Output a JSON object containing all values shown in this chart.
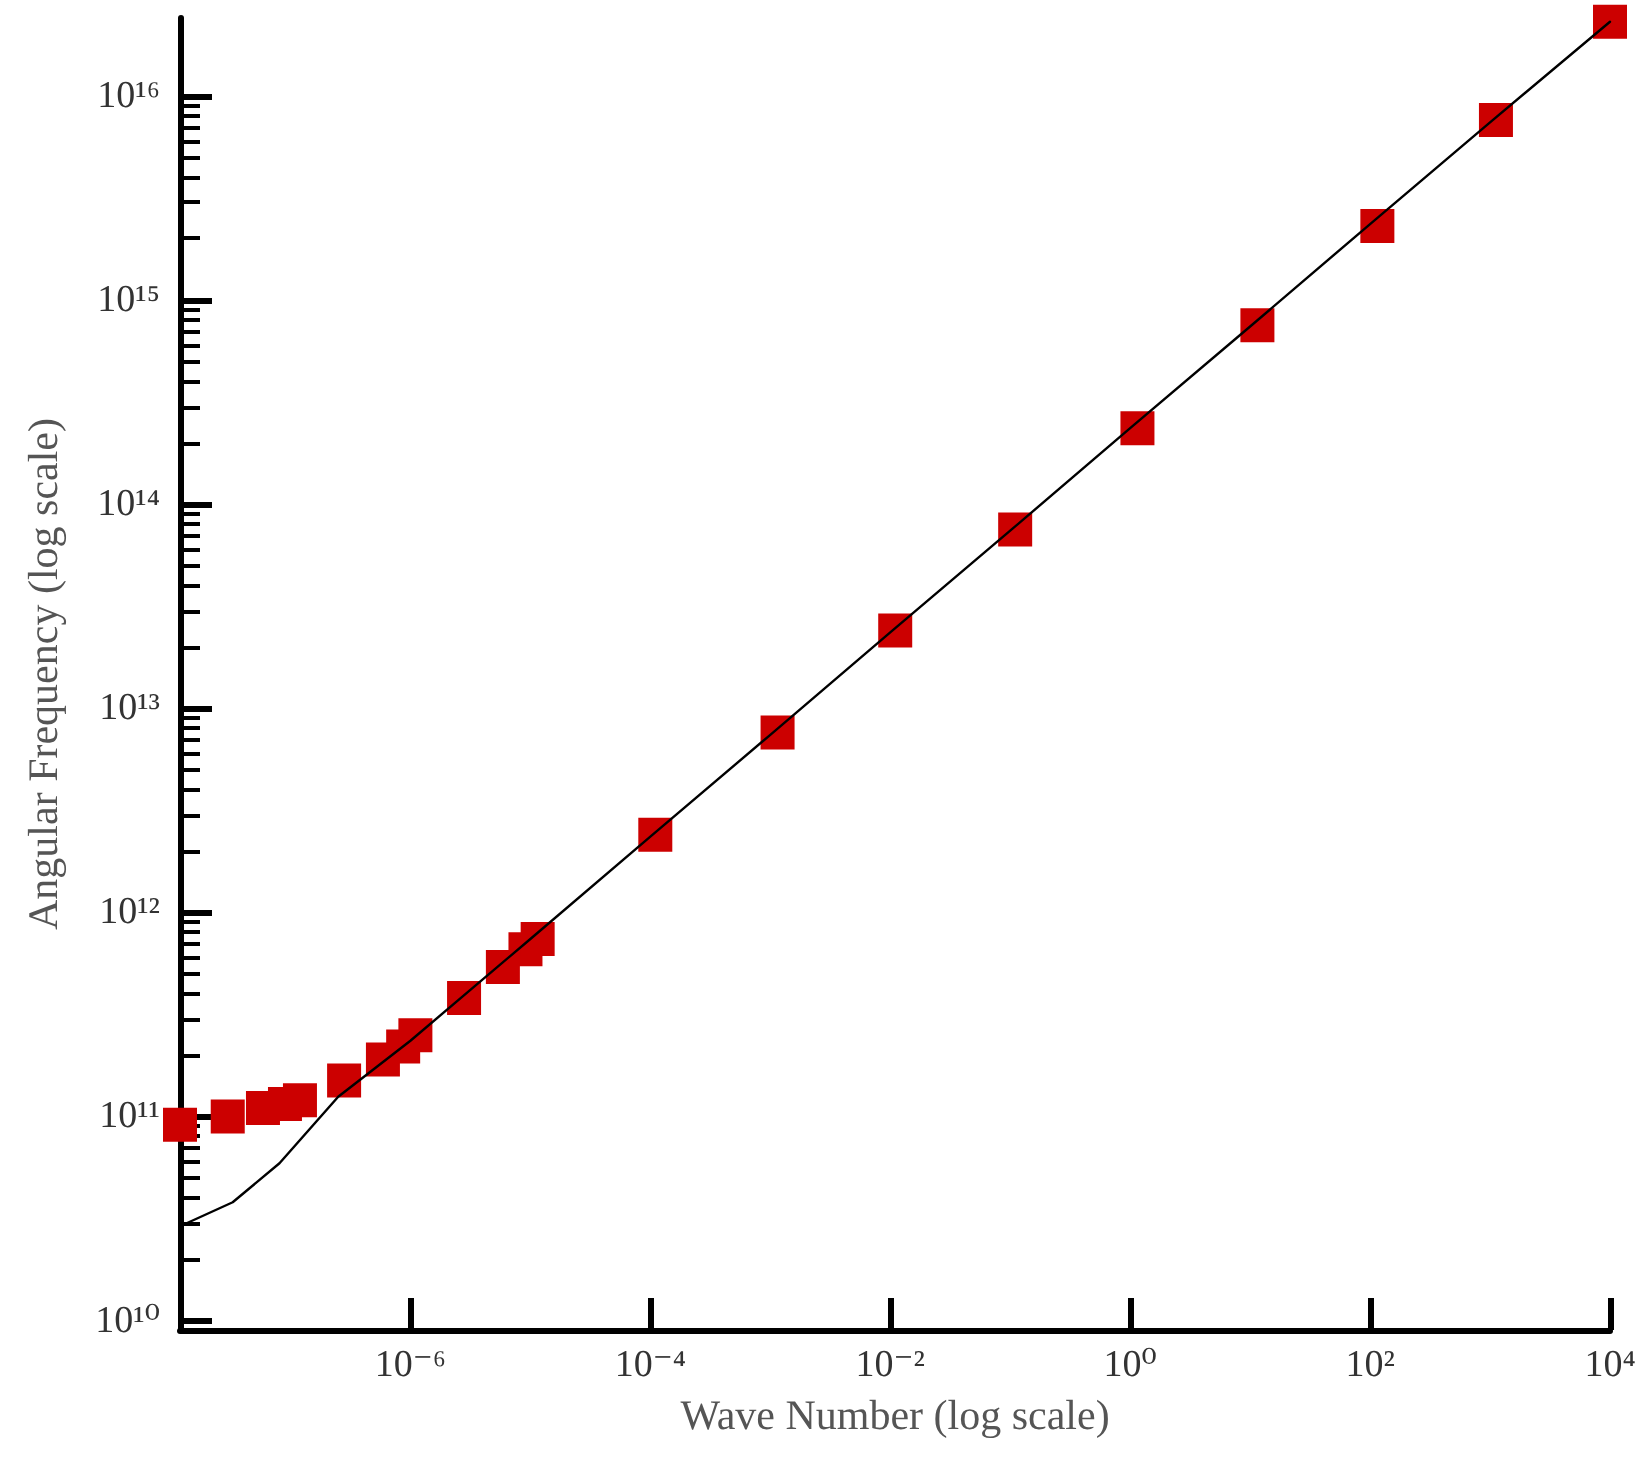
{
  "chart_data": {
    "type": "scatter",
    "xlabel": "Wave Number (log scale)",
    "ylabel": "Angular Frequency (log scale)",
    "log": "xy",
    "grid": false,
    "xlim": [
      1.2e-08,
      10000
    ],
    "ylim": [
      9000000000.0,
      2.4e+16
    ],
    "xticks": [
      {
        "value": 1e-06,
        "label": "10⁻⁶"
      },
      {
        "value": 0.0001,
        "label": "10⁻⁴"
      },
      {
        "value": 0.01,
        "label": "10⁻²"
      },
      {
        "value": 1,
        "label": "10⁰"
      },
      {
        "value": 100,
        "label": "10²"
      },
      {
        "value": 10000,
        "label": "10⁴"
      }
    ],
    "yticks": [
      {
        "value": 10000000000.0,
        "label": "10¹⁰"
      },
      {
        "value": 100000000000.0,
        "label": "10¹¹"
      },
      {
        "value": 1000000000000.0,
        "label": "10¹²"
      },
      {
        "value": 10000000000000.0,
        "label": "10¹³"
      },
      {
        "value": 100000000000000.0,
        "label": "10¹⁴"
      },
      {
        "value": 1000000000000000.0,
        "label": "10¹⁵"
      },
      {
        "value": 1e+16,
        "label": "10¹⁶"
      },
      {
        "value": 20000000000.0,
        "label": null
      },
      {
        "value": 30000000000.0,
        "label": null
      },
      {
        "value": 40000000000.0,
        "label": null
      },
      {
        "value": 50000000000.0,
        "label": null
      },
      {
        "value": 60000000000.0,
        "label": null
      },
      {
        "value": 70000000000.0,
        "label": null
      },
      {
        "value": 80000000000.0,
        "label": null
      },
      {
        "value": 90000000000.0,
        "label": null
      },
      {
        "value": 200000000000.0,
        "label": null
      },
      {
        "value": 300000000000.0,
        "label": null
      },
      {
        "value": 400000000000.0,
        "label": null
      },
      {
        "value": 500000000000.0,
        "label": null
      },
      {
        "value": 600000000000.0,
        "label": null
      },
      {
        "value": 700000000000.0,
        "label": null
      },
      {
        "value": 800000000000.0,
        "label": null
      },
      {
        "value": 900000000000.0,
        "label": null
      },
      {
        "value": 2000000000000.0,
        "label": null
      },
      {
        "value": 3000000000000.0,
        "label": null
      },
      {
        "value": 4000000000000.0,
        "label": null
      },
      {
        "value": 5000000000000.0,
        "label": null
      },
      {
        "value": 6000000000000.0,
        "label": null
      },
      {
        "value": 7000000000000.0,
        "label": null
      },
      {
        "value": 8000000000000.0,
        "label": null
      },
      {
        "value": 9000000000000.0,
        "label": null
      },
      {
        "value": 20000000000000.0,
        "label": null
      },
      {
        "value": 30000000000000.0,
        "label": null
      },
      {
        "value": 40000000000000.0,
        "label": null
      },
      {
        "value": 50000000000000.0,
        "label": null
      },
      {
        "value": 60000000000000.0,
        "label": null
      },
      {
        "value": 70000000000000.0,
        "label": null
      },
      {
        "value": 80000000000000.0,
        "label": null
      },
      {
        "value": 90000000000000.0,
        "label": null
      },
      {
        "value": 200000000000000.0,
        "label": null
      },
      {
        "value": 300000000000000.0,
        "label": null
      },
      {
        "value": 400000000000000.0,
        "label": null
      },
      {
        "value": 500000000000000.0,
        "label": null
      },
      {
        "value": 600000000000000.0,
        "label": null
      },
      {
        "value": 700000000000000.0,
        "label": null
      },
      {
        "value": 800000000000000.0,
        "label": null
      },
      {
        "value": 900000000000000.0,
        "label": null
      },
      {
        "value": 2000000000000000.0,
        "label": null
      },
      {
        "value": 3000000000000000.0,
        "label": null
      },
      {
        "value": 4000000000000000.0,
        "label": null
      },
      {
        "value": 5000000000000000.0,
        "label": null
      },
      {
        "value": 6000000000000000.0,
        "label": null
      },
      {
        "value": 7000000000000000.0,
        "label": null
      },
      {
        "value": 8000000000000000.0,
        "label": null
      },
      {
        "value": 9000000000000000.0,
        "label": null
      }
    ],
    "series": [
      {
        "marker": "square",
        "color": "#cc0000",
        "x": [
          1.2e-08,
          3e-08,
          5.9e-08,
          9e-08,
          1.2e-07,
          2.8e-07,
          5.9e-07,
          8.7e-07,
          1.1e-06,
          2.8e-06,
          5.9e-06,
          9.1e-06,
          1.15e-05,
          0.00011,
          0.00115,
          0.011,
          0.11,
          1.15,
          11.5,
          115,
          1120,
          10000
        ],
        "values": [
          91000000000.0,
          100000000000.0,
          110000000000.0,
          115000000000.0,
          120000000000.0,
          150000000000.0,
          190000000000.0,
          220000000000.0,
          250000000000.0,
          380000000000.0,
          540000000000.0,
          660000000000.0,
          740000000000.0,
          2400000000000.0,
          7600000000000.0,
          24000000000000.0,
          75000000000000.0,
          235000000000000.0,
          750000000000000.0,
          2300000000000000.0,
          7600000000000000.0,
          2.3e+16
        ]
      },
      {
        "type": "line",
        "marker": "none",
        "color": "#000000",
        "x": [
          1.2e-08,
          3.3e-08,
          8.1e-08,
          2.5e-07,
          1e-06,
          1e-05,
          0.0001,
          0.001,
          0.01,
          0.1,
          1,
          10,
          100,
          1000,
          10000
        ],
        "values": [
          29000000000.0,
          38000000000.0,
          59000000000.0,
          125000000000.0,
          235000000000.0,
          740000000000.0,
          2350000000000.0,
          7400000000000.0,
          23500000000000.0,
          74000000000000.0,
          235000000000000.0,
          740000000000000.0,
          2350000000000000.0,
          7400000000000000.0,
          2.3e+16
        ]
      }
    ]
  }
}
